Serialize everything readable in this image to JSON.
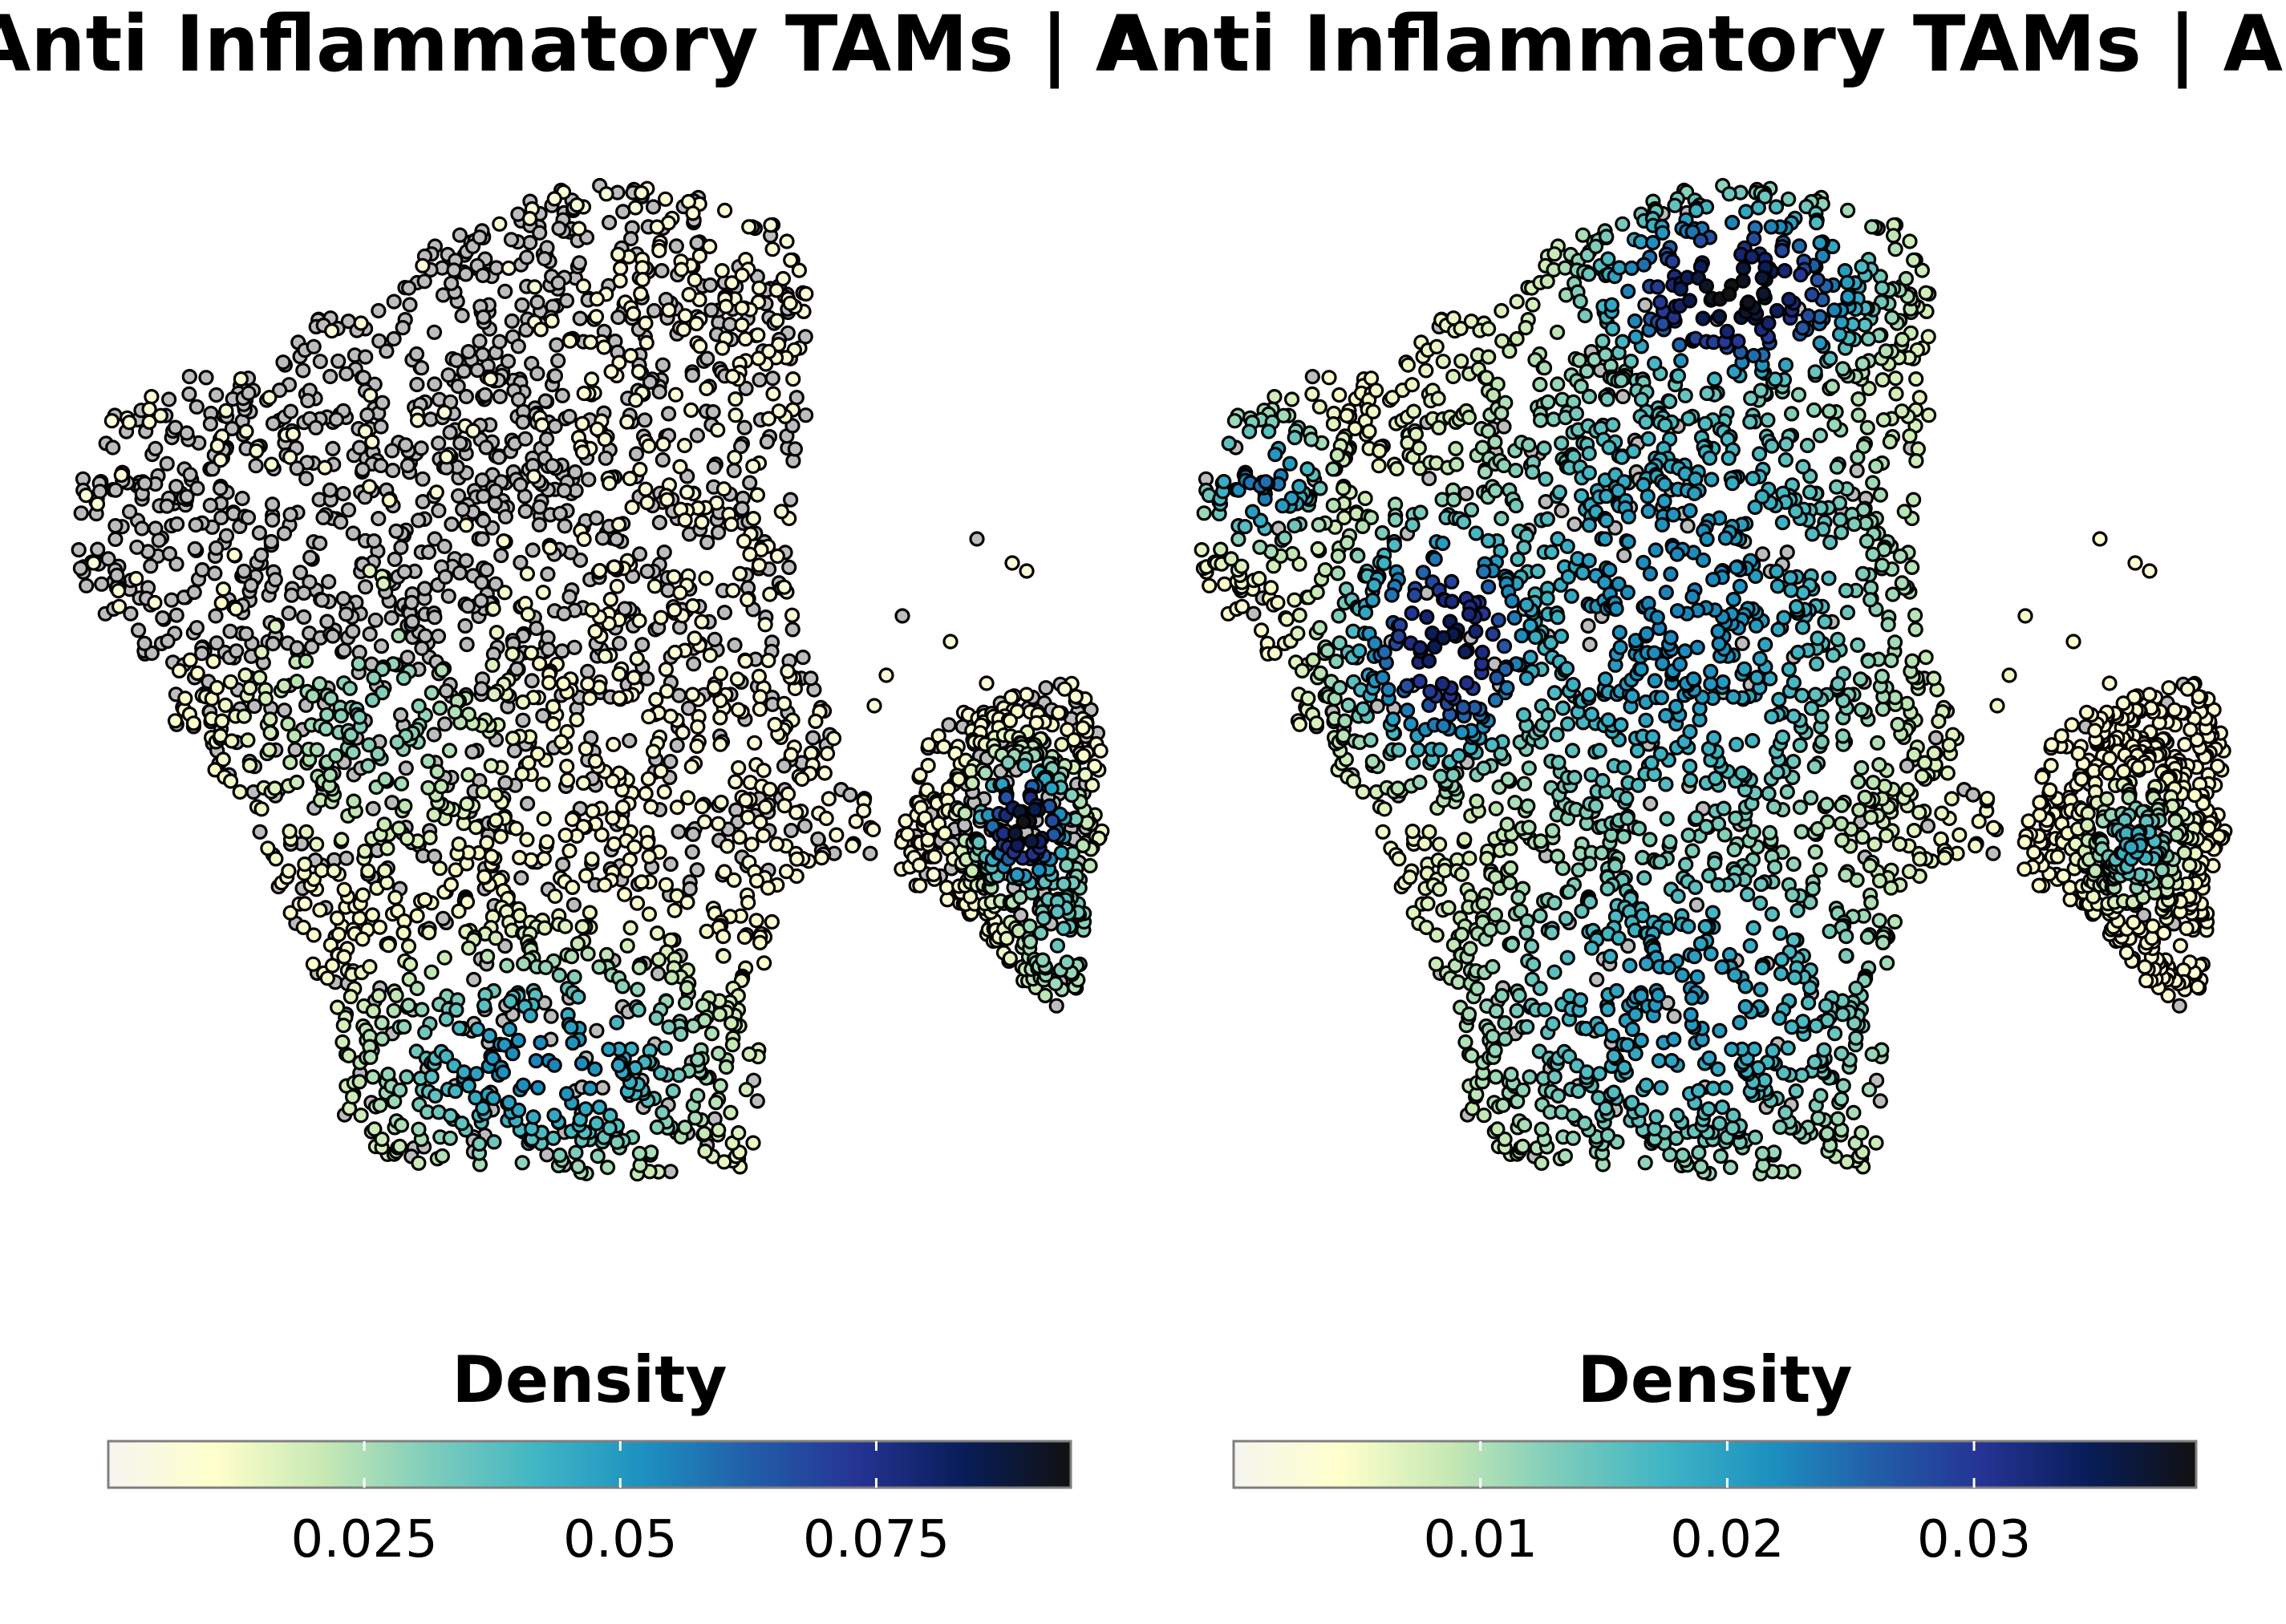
{
  "chart_data": [
    {
      "type": "scatter",
      "title": "Anti Inflammatory TAMs | A",
      "subtitle": "",
      "xlabel": "",
      "ylabel": "",
      "grid": false,
      "axes_visible": false,
      "point_style": "filled circles with black outline",
      "color_encoding": "kernel density of marker-positive cells; cells with no signal drawn in grey",
      "background_point_color": "#bdbdbd",
      "legend": {
        "title": "Density",
        "position": "bottom",
        "type": "colorbar",
        "range": [
          0.0,
          0.094
        ],
        "ticks": [
          0.025,
          0.05,
          0.075
        ],
        "tick_labels": [
          "0.025",
          "0.05",
          "0.075"
        ]
      },
      "density_hotspots": [
        {
          "region": "right satellite cluster",
          "relative_density": 1.0
        },
        {
          "region": "bottom of main cluster",
          "relative_density": 0.55
        },
        {
          "region": "lower left of main cluster",
          "relative_density": 0.3
        }
      ]
    },
    {
      "type": "scatter",
      "title": "Anti Inflammatory TAMs | A",
      "subtitle": "",
      "xlabel": "",
      "ylabel": "",
      "grid": false,
      "axes_visible": false,
      "point_style": "filled circles with black outline",
      "color_encoding": "kernel density of marker-positive cells; cells with no signal drawn in grey",
      "background_point_color": "#bdbdbd",
      "legend": {
        "title": "Density",
        "position": "bottom",
        "type": "colorbar",
        "range": [
          0.0,
          0.039
        ],
        "ticks": [
          0.01,
          0.02,
          0.03
        ],
        "tick_labels": [
          "0.01",
          "0.02",
          "0.03"
        ]
      },
      "density_hotspots": [
        {
          "region": "top of main cluster",
          "relative_density": 1.0
        },
        {
          "region": "middle left of main cluster",
          "relative_density": 0.9
        },
        {
          "region": "top left lobe",
          "relative_density": 0.6
        },
        {
          "region": "right satellite cluster",
          "relative_density": 0.45
        }
      ]
    }
  ],
  "colors": {
    "colormap": [
      "#f5f5ef",
      "#ffffcc",
      "#c7e9b4",
      "#7fcdbb",
      "#41b6c4",
      "#1d91c0",
      "#225ea8",
      "#253494",
      "#081d58",
      "#111111"
    ],
    "point_outline": "#000000",
    "background_point": "#bdbdbd",
    "colorbar_border": "#7f7f7f",
    "tick_mark": "#ffffff"
  }
}
